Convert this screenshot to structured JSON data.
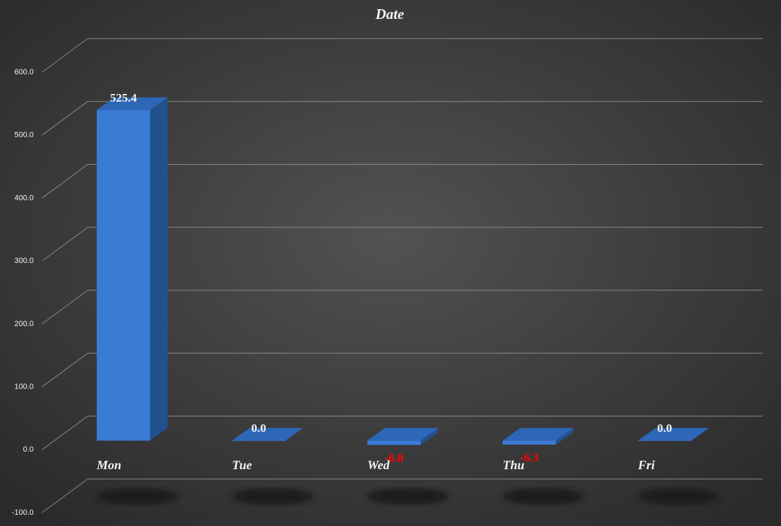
{
  "chart_data": {
    "type": "bar3d",
    "title": "Date",
    "categories": [
      "Mon",
      "Tue",
      "Wed",
      "Thu",
      "Fri"
    ],
    "values": [
      525.4,
      0,
      -6.8,
      -6.3,
      0
    ],
    "value_labels": [
      "525.4",
      "0.0",
      "-6.8",
      "-6.3",
      "0.0"
    ],
    "color": "#3a7bd5",
    "negative_label_color": "#ff0000",
    "ylim": [
      -100,
      600
    ],
    "yticks": [
      {
        "value": -100,
        "label": "-100.0"
      },
      {
        "value": 0,
        "label": "0.0"
      },
      {
        "value": 100,
        "label": "100.0"
      },
      {
        "value": 200,
        "label": "200.0"
      },
      {
        "value": 300,
        "label": "300.0"
      },
      {
        "value": 400,
        "label": "400.0"
      },
      {
        "value": 500,
        "label": "500.0"
      },
      {
        "value": 600,
        "label": "600.0"
      }
    ],
    "grid": true
  }
}
